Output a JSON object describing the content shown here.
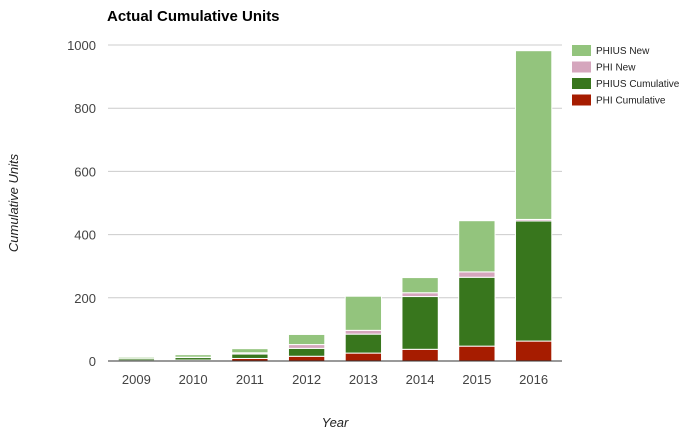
{
  "chart_data": {
    "type": "bar",
    "stacked": true,
    "title": "Actual Cumulative Units",
    "xlabel": "Year",
    "ylabel": "Cumulative Units",
    "ylim": [
      0,
      1000
    ],
    "yticks": [
      "0",
      "200",
      "400",
      "600",
      "800",
      "1000"
    ],
    "grid": true,
    "legend_position": "right",
    "categories": [
      "2009",
      "2010",
      "2011",
      "2012",
      "2013",
      "2014",
      "2015",
      "2016"
    ],
    "series": [
      {
        "name": "PHI Cumulative",
        "color": "#a61c00",
        "values": [
          1,
          3,
          8,
          15,
          25,
          37,
          47,
          63
        ]
      },
      {
        "name": "PHIUS Cumulative",
        "color": "#38761d",
        "values": [
          6,
          8,
          14,
          25,
          60,
          167,
          218,
          380
        ]
      },
      {
        "name": "PHI New",
        "color": "#d5a6bd",
        "values": [
          0,
          1,
          4,
          12,
          12,
          12,
          17,
          5
        ]
      },
      {
        "name": "PHIUS New",
        "color": "#93c47d",
        "values": [
          5,
          8,
          13,
          32,
          108,
          48,
          162,
          534
        ]
      }
    ],
    "legend_order": [
      "PHIUS New",
      "PHI New",
      "PHIUS Cumulative",
      "PHI Cumulative"
    ]
  }
}
